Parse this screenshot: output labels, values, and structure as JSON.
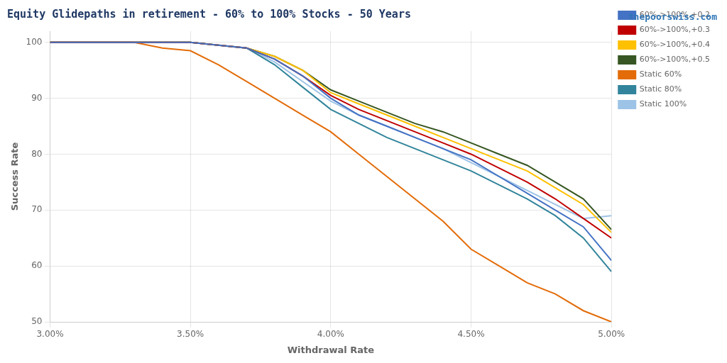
{
  "chart_data": {
    "type": "line",
    "title": "Equity Glidepaths in retirement - 60% to 100% Stocks - 50 Years",
    "xlabel": "Withdrawal Rate",
    "ylabel": "Success Rate",
    "annotation": "thepoorswiss.com",
    "x": [
      0.03,
      0.031,
      0.032,
      0.033,
      0.034,
      0.035,
      0.036,
      0.037,
      0.038,
      0.039,
      0.04,
      0.041,
      0.042,
      0.043,
      0.044,
      0.045,
      0.046,
      0.047,
      0.048,
      0.049,
      0.05
    ],
    "xlim": [
      0.03,
      0.05
    ],
    "xticks": [
      {
        "value": 0.03,
        "label": "3.00%"
      },
      {
        "value": 0.035,
        "label": "3.50%"
      },
      {
        "value": 0.04,
        "label": "4.00%"
      },
      {
        "value": 0.045,
        "label": "4.50%"
      },
      {
        "value": 0.05,
        "label": "5.00%"
      }
    ],
    "ylim": [
      50,
      102
    ],
    "yticks": [
      50,
      60,
      70,
      80,
      90,
      100
    ],
    "grid": true,
    "legend": "right",
    "series": [
      {
        "name": "60%->100%,+0.2",
        "color": "#4472c4",
        "values": [
          100,
          100,
          100,
          100,
          100,
          100,
          99.5,
          99,
          97,
          94,
          90,
          87,
          85,
          83,
          81,
          79,
          76,
          73,
          70,
          67,
          61
        ]
      },
      {
        "name": "60%->100%,+0.3",
        "color": "#c00000",
        "values": [
          100,
          100,
          100,
          100,
          100,
          100,
          99.5,
          99,
          97,
          94,
          90.5,
          88,
          86,
          84,
          82,
          80,
          77.5,
          75,
          72,
          68.5,
          65
        ]
      },
      {
        "name": "60%->100%,+0.4",
        "color": "#ffc000",
        "values": [
          100,
          100,
          100,
          100,
          100,
          100,
          99.5,
          99,
          97.5,
          95,
          91,
          89,
          87,
          85,
          83,
          81,
          79,
          77,
          74,
          71,
          66
        ]
      },
      {
        "name": "60%->100%,+0.5",
        "color": "#375623",
        "values": [
          100,
          100,
          100,
          100,
          100,
          100,
          99.5,
          99,
          97.5,
          95,
          91.5,
          89.5,
          87.5,
          85.5,
          84,
          82,
          80,
          78,
          75,
          72,
          66.5
        ]
      },
      {
        "name": "Static 60%",
        "color": "#e36c09",
        "values": [
          100,
          100,
          100,
          100,
          99,
          98.5,
          96,
          93,
          90,
          87,
          84,
          80,
          76,
          72,
          68,
          63,
          60,
          57,
          55,
          52,
          50
        ]
      },
      {
        "name": "Static 80%",
        "color": "#31849b",
        "values": [
          100,
          100,
          100,
          100,
          100,
          100,
          99.5,
          99,
          96,
          92,
          88,
          85.5,
          83,
          81,
          79,
          77,
          74.5,
          72,
          69,
          65,
          59
        ]
      },
      {
        "name": "Static 100%",
        "color": "#9dc3e6",
        "values": [
          100,
          100,
          100,
          100,
          100,
          100,
          99.5,
          99,
          96.5,
          93,
          89.5,
          87,
          85,
          83,
          81,
          78.5,
          76,
          73.5,
          71,
          68.5,
          69
        ]
      }
    ]
  }
}
